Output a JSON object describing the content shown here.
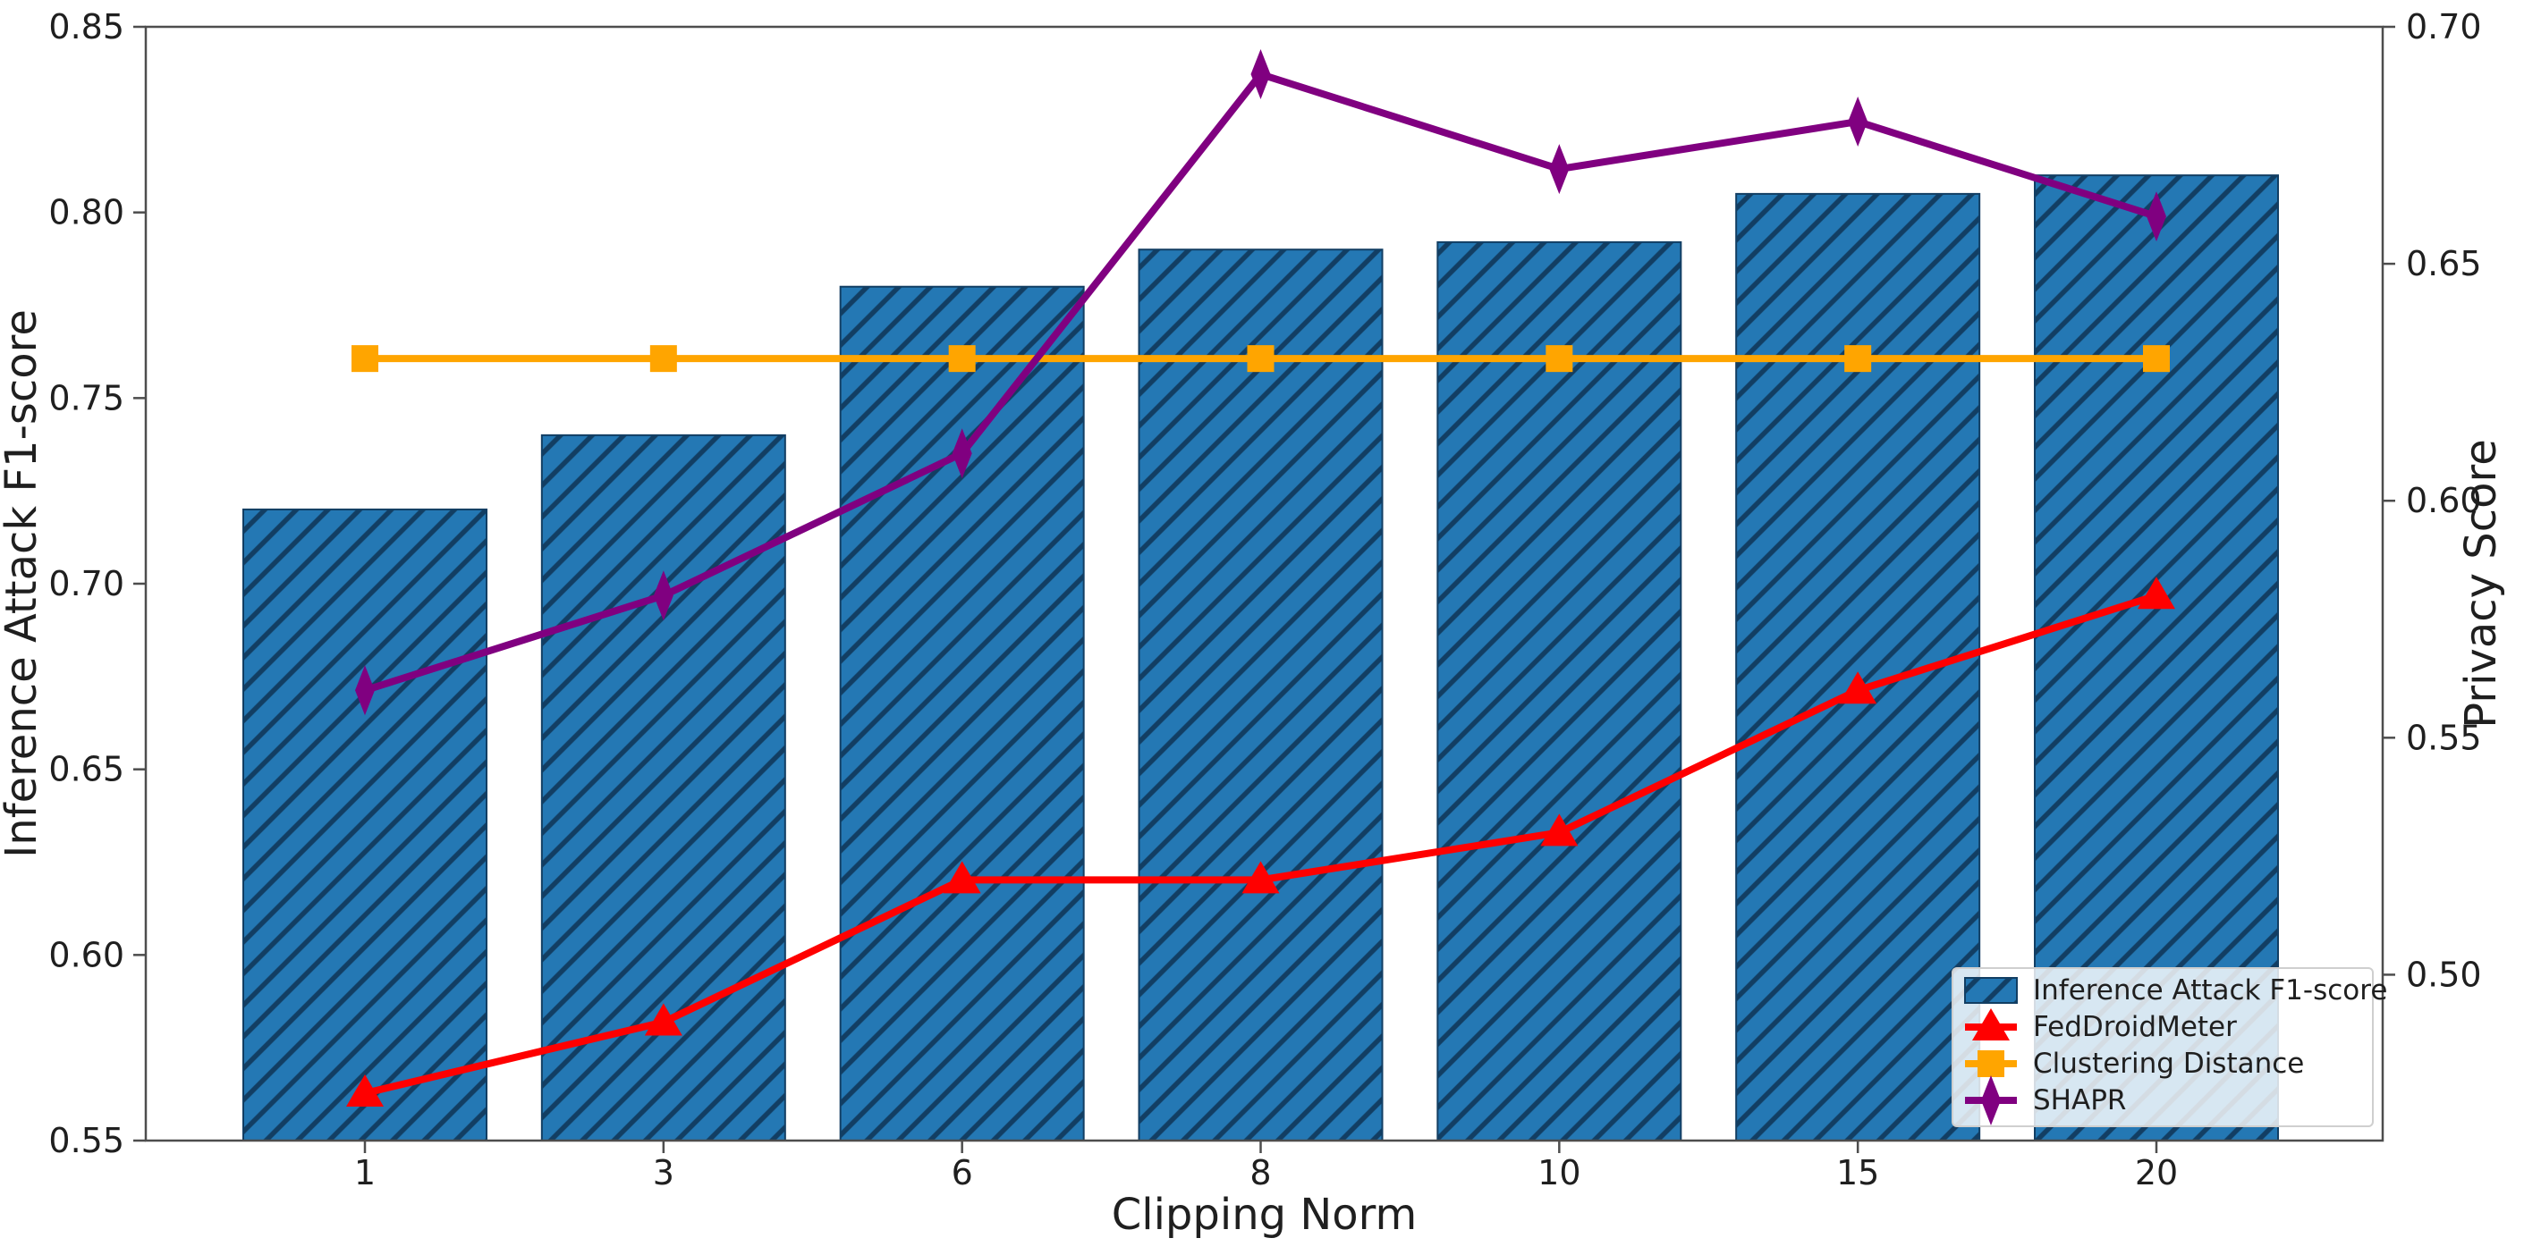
{
  "chart_data": {
    "type": "bar",
    "title": "",
    "xlabel": "Clipping Norm",
    "categories": [
      "1",
      "3",
      "6",
      "8",
      "10",
      "15",
      "20"
    ],
    "left_axis": {
      "label": "Inference Attack F1-score",
      "min": 0.55,
      "max": 0.85,
      "ticks": [
        0.55,
        0.6,
        0.65,
        0.7,
        0.75,
        0.8,
        0.85
      ],
      "tick_labels": [
        "0.55",
        "0.60",
        "0.65",
        "0.70",
        "0.75",
        "0.80",
        "0.85"
      ]
    },
    "right_axis": {
      "label": "Privacy Score",
      "min": 0.465,
      "max": 0.7,
      "ticks": [
        0.5,
        0.55,
        0.6,
        0.65,
        0.7
      ],
      "tick_labels": [
        "0.50",
        "0.55",
        "0.60",
        "0.65",
        "0.70"
      ]
    },
    "grid": false,
    "series": [
      {
        "name": "Inference Attack F1-score",
        "type": "bar",
        "axis": "left",
        "color": "#2478b4",
        "hatch": "//",
        "hatch_color": "#123e63",
        "values": [
          0.72,
          0.74,
          0.78,
          0.79,
          0.792,
          0.805,
          0.81
        ]
      },
      {
        "name": "FedDroidMeter",
        "type": "line",
        "axis": "right",
        "color": "#ff0000",
        "marker": "triangle-up",
        "values": [
          0.475,
          0.49,
          0.52,
          0.52,
          0.53,
          0.56,
          0.58
        ]
      },
      {
        "name": "Clustering Distance",
        "type": "line",
        "axis": "right",
        "color": "#ffa500",
        "marker": "square",
        "values": [
          0.63,
          0.63,
          0.63,
          0.63,
          0.63,
          0.63,
          0.63
        ]
      },
      {
        "name": "SHAPR",
        "type": "line",
        "axis": "right",
        "color": "#800080",
        "marker": "thin-diamond",
        "values": [
          0.56,
          0.58,
          0.61,
          0.69,
          0.67,
          0.68,
          0.66
        ]
      }
    ],
    "legend": {
      "position": "lower-right",
      "entries": [
        "Inference Attack F1-score",
        "FedDroidMeter",
        "Clustering Distance",
        "SHAPR"
      ]
    }
  }
}
